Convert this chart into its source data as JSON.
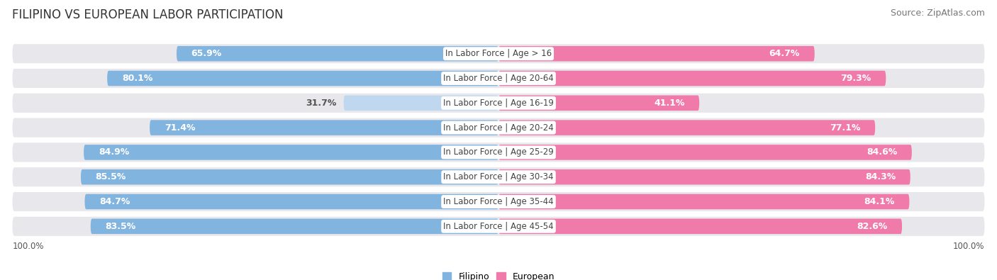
{
  "title": "FILIPINO VS EUROPEAN LABOR PARTICIPATION",
  "source": "Source: ZipAtlas.com",
  "categories": [
    "In Labor Force | Age > 16",
    "In Labor Force | Age 20-64",
    "In Labor Force | Age 16-19",
    "In Labor Force | Age 20-24",
    "In Labor Force | Age 25-29",
    "In Labor Force | Age 30-34",
    "In Labor Force | Age 35-44",
    "In Labor Force | Age 45-54"
  ],
  "filipino_values": [
    65.9,
    80.1,
    31.7,
    71.4,
    84.9,
    85.5,
    84.7,
    83.5
  ],
  "european_values": [
    64.7,
    79.3,
    41.1,
    77.1,
    84.6,
    84.3,
    84.1,
    82.6
  ],
  "filipino_color_dark": "#82b4e0",
  "filipino_color_light": "#c0d8ef",
  "european_color_dark": "#f07aaa",
  "european_color_light": "#f5c0d8",
  "row_bg_color": "#e8e8ec",
  "label_white": "#ffffff",
  "label_dark": "#555555",
  "max_value": 100.0,
  "legend_filipino": "Filipino",
  "legend_european": "European",
  "title_fontsize": 12,
  "source_fontsize": 9,
  "bar_label_fontsize": 9,
  "category_fontsize": 8.5,
  "legend_fontsize": 9,
  "axis_label_fontsize": 8.5
}
